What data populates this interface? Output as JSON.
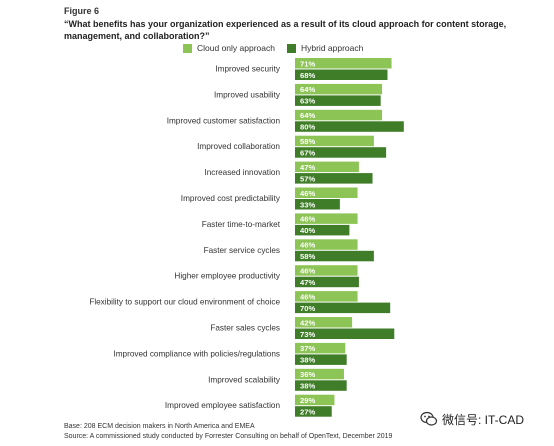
{
  "figure_label": "Figure 6",
  "question": "“What benefits has your organization experienced as a result of its cloud approach for content storage, management, and collaboration?”",
  "base_note": "Base: 208 ECM decision makers in North America and EMEA",
  "source_note": "Source: A commissioned study conducted by Forrester Consulting on behalf of OpenText, December 2019",
  "watermark_text": "微信号: IT-CAD",
  "colors": {
    "cloud_only": "#8dc456",
    "hybrid": "#3f7d28",
    "label_text": "#333333"
  },
  "chart_data": {
    "type": "bar",
    "orientation": "horizontal",
    "categories": [
      "Improved security",
      "Improved usability",
      "Improved customer satisfaction",
      "Improved collaboration",
      "Increased innovation",
      "Improved cost predictability",
      "Faster time-to-market",
      "Faster service cycles",
      "Higher employee productivity",
      "Flexibility to support our cloud environment of choice",
      "Faster sales cycles",
      "Improved compliance with policies/regulations",
      "Improved scalability",
      "Improved employee satisfaction"
    ],
    "series": [
      {
        "name": "Cloud only approach",
        "values": [
          71,
          64,
          64,
          58,
          47,
          46,
          46,
          46,
          46,
          46,
          42,
          37,
          36,
          29
        ]
      },
      {
        "name": "Hybrid approach",
        "values": [
          68,
          63,
          80,
          67,
          57,
          33,
          40,
          58,
          47,
          70,
          73,
          38,
          38,
          27
        ]
      }
    ],
    "value_suffix": "%",
    "legend_position": "top"
  }
}
